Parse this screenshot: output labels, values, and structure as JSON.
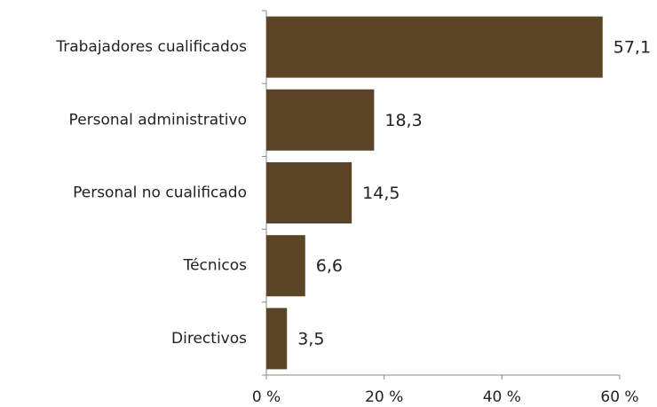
{
  "chart_data": {
    "type": "bar",
    "orientation": "horizontal",
    "categories": [
      "Trabajadores cualificados",
      "Personal administrativo",
      "Personal no cualificado",
      "Técnicos",
      "Directivos"
    ],
    "values": [
      57.1,
      18.3,
      14.5,
      6.6,
      3.5
    ],
    "value_labels": [
      "57,1",
      "18,3",
      "14,5",
      "6,6",
      "3,5"
    ],
    "color": "#5c4527",
    "xlim": [
      0,
      60
    ],
    "xticks": [
      {
        "value": 0,
        "label": "0 %"
      },
      {
        "value": 20,
        "label": "20 %"
      },
      {
        "value": 40,
        "label": "40 %"
      },
      {
        "value": 60,
        "label": "60 %"
      }
    ],
    "grid": false
  }
}
